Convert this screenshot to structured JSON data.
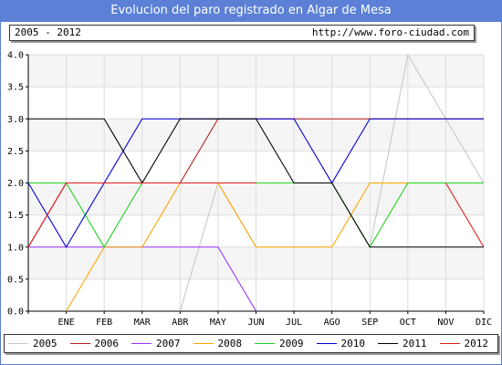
{
  "title": "Evolucion del paro registrado en Algar de Mesa",
  "info": {
    "period": "2005 - 2012",
    "url": "http://www.foro-ciudad.com"
  },
  "chart_data": {
    "type": "line",
    "categories": [
      "",
      "ENE",
      "FEB",
      "MAR",
      "ABR",
      "MAY",
      "JUN",
      "JUL",
      "AGO",
      "SEP",
      "OCT",
      "NOV",
      "DIC"
    ],
    "ylim": [
      0,
      4
    ],
    "yticks": [
      "0.0",
      "0.5",
      "1.0",
      "1.5",
      "2.0",
      "2.5",
      "3.0",
      "3.5",
      "4.0"
    ],
    "grid": true,
    "legend_position": "bottom",
    "series": [
      {
        "name": "2005",
        "color": "#c8c8c8",
        "values": [
          null,
          null,
          null,
          null,
          0,
          2,
          1,
          null,
          null,
          1,
          4,
          3,
          2
        ]
      },
      {
        "name": "2006",
        "color": "#b41e1e",
        "values": [
          1,
          2,
          2,
          2,
          2,
          3,
          3,
          3,
          3,
          3,
          3,
          3,
          3
        ]
      },
      {
        "name": "2007",
        "color": "#9b30ff",
        "values": [
          1,
          1,
          1,
          1,
          1,
          1,
          0,
          null,
          null,
          null,
          null,
          null,
          null
        ]
      },
      {
        "name": "2008",
        "color": "#ffa500",
        "values": [
          null,
          0,
          1,
          1,
          2,
          2,
          1,
          1,
          1,
          2,
          2,
          2,
          2
        ]
      },
      {
        "name": "2009",
        "color": "#1ed21e",
        "values": [
          2,
          2,
          1,
          2,
          2,
          2,
          2,
          2,
          2,
          1,
          2,
          2,
          2
        ]
      },
      {
        "name": "2010",
        "color": "#0000d2",
        "values": [
          2,
          1,
          2,
          3,
          3,
          3,
          3,
          3,
          2,
          3,
          3,
          3,
          3
        ]
      },
      {
        "name": "2011",
        "color": "#000000",
        "values": [
          3,
          3,
          3,
          2,
          3,
          3,
          3,
          2,
          2,
          1,
          1,
          1,
          1
        ]
      },
      {
        "name": "2012",
        "color": "#e11e1e",
        "values": [
          1,
          2,
          2,
          2,
          2,
          2,
          2,
          null,
          null,
          null,
          null,
          2,
          1
        ]
      }
    ]
  }
}
